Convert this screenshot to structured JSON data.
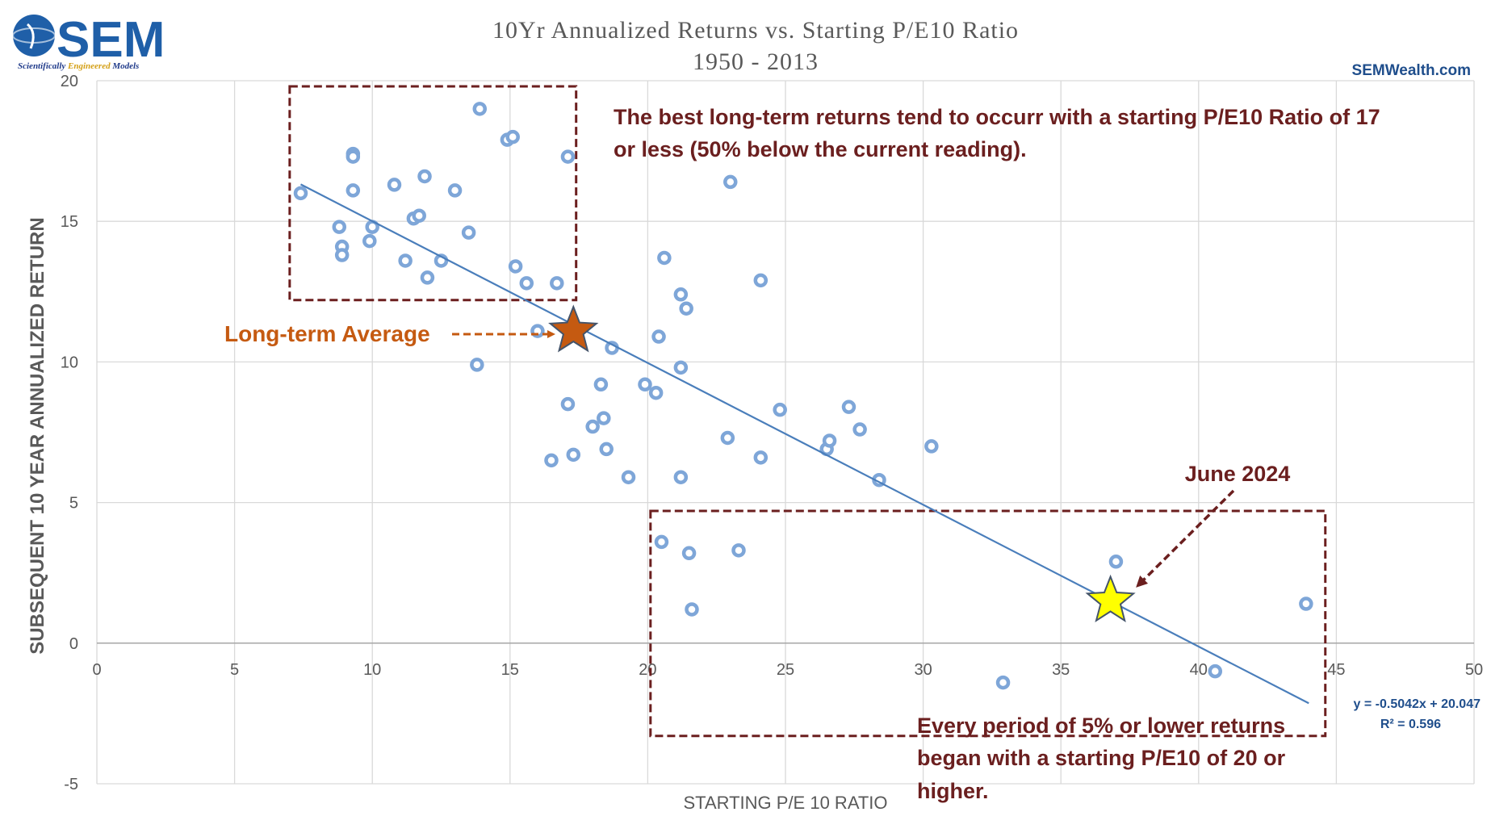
{
  "logo": {
    "name": "SEM",
    "tagline_parts": [
      "Scientifically ",
      "Engineered",
      " Models"
    ]
  },
  "colors": {
    "marker": "#7ea6d8",
    "trendline": "#4a7ebb",
    "gridline": "#d9d9d9",
    "annotation": "#6b1f1f",
    "average": "#c55a11",
    "current_star": "#ffff00"
  },
  "chart_data": {
    "type": "scatter",
    "title": "10Yr Annualized Returns vs. Starting P/E10 Ratio",
    "subtitle": "1950 - 2013",
    "credit": "SEMWealth.com",
    "xlabel": "STARTING P/E 10 RATIO",
    "ylabel": "SUBSEQUENT 10 YEAR ANNUALIZED RETURN",
    "xlim": [
      0,
      50
    ],
    "ylim": [
      -5,
      20
    ],
    "xticks": [
      "0",
      "5",
      "10",
      "15",
      "20",
      "25",
      "30",
      "35",
      "40",
      "45",
      "50"
    ],
    "yticks": [
      "-5",
      "0",
      "5",
      "10",
      "15",
      "20"
    ],
    "grid": true,
    "points": [
      {
        "x": 7.4,
        "y": 16.0
      },
      {
        "x": 8.8,
        "y": 14.8
      },
      {
        "x": 8.9,
        "y": 14.1
      },
      {
        "x": 8.9,
        "y": 13.8
      },
      {
        "x": 9.3,
        "y": 17.4
      },
      {
        "x": 9.3,
        "y": 17.3
      },
      {
        "x": 9.3,
        "y": 16.1
      },
      {
        "x": 9.9,
        "y": 14.3
      },
      {
        "x": 10.0,
        "y": 14.8
      },
      {
        "x": 10.8,
        "y": 16.3
      },
      {
        "x": 11.2,
        "y": 13.6
      },
      {
        "x": 11.5,
        "y": 15.1
      },
      {
        "x": 11.7,
        "y": 15.2
      },
      {
        "x": 11.9,
        "y": 16.6
      },
      {
        "x": 12.0,
        "y": 13.0
      },
      {
        "x": 12.5,
        "y": 13.6
      },
      {
        "x": 13.0,
        "y": 16.1
      },
      {
        "x": 13.5,
        "y": 14.6
      },
      {
        "x": 13.8,
        "y": 9.9
      },
      {
        "x": 13.9,
        "y": 19.0
      },
      {
        "x": 14.9,
        "y": 17.9
      },
      {
        "x": 15.1,
        "y": 18.0
      },
      {
        "x": 15.2,
        "y": 13.4
      },
      {
        "x": 15.6,
        "y": 12.8
      },
      {
        "x": 16.0,
        "y": 11.1
      },
      {
        "x": 16.5,
        "y": 6.5
      },
      {
        "x": 16.7,
        "y": 12.8
      },
      {
        "x": 17.1,
        "y": 17.3
      },
      {
        "x": 17.1,
        "y": 8.5
      },
      {
        "x": 17.3,
        "y": 6.7
      },
      {
        "x": 18.0,
        "y": 7.7
      },
      {
        "x": 18.3,
        "y": 9.2
      },
      {
        "x": 18.4,
        "y": 8.0
      },
      {
        "x": 18.5,
        "y": 6.9
      },
      {
        "x": 18.7,
        "y": 10.5
      },
      {
        "x": 19.3,
        "y": 5.9
      },
      {
        "x": 19.9,
        "y": 9.2
      },
      {
        "x": 20.3,
        "y": 8.9
      },
      {
        "x": 20.4,
        "y": 10.9
      },
      {
        "x": 20.5,
        "y": 3.6
      },
      {
        "x": 20.6,
        "y": 13.7
      },
      {
        "x": 21.2,
        "y": 5.9
      },
      {
        "x": 21.2,
        "y": 9.8
      },
      {
        "x": 21.2,
        "y": 12.4
      },
      {
        "x": 21.4,
        "y": 11.9
      },
      {
        "x": 21.5,
        "y": 3.2
      },
      {
        "x": 21.6,
        "y": 1.2
      },
      {
        "x": 22.9,
        "y": 7.3
      },
      {
        "x": 23.0,
        "y": 16.4
      },
      {
        "x": 23.3,
        "y": 3.3
      },
      {
        "x": 24.1,
        "y": 12.9
      },
      {
        "x": 24.1,
        "y": 6.6
      },
      {
        "x": 24.8,
        "y": 8.3
      },
      {
        "x": 26.5,
        "y": 6.9
      },
      {
        "x": 26.6,
        "y": 7.2
      },
      {
        "x": 27.3,
        "y": 8.4
      },
      {
        "x": 27.7,
        "y": 7.6
      },
      {
        "x": 28.4,
        "y": 5.8
      },
      {
        "x": 30.3,
        "y": 7.0
      },
      {
        "x": 32.9,
        "y": -1.4
      },
      {
        "x": 37.0,
        "y": 2.9
      },
      {
        "x": 40.6,
        "y": -1.0
      },
      {
        "x": 43.9,
        "y": 1.4
      }
    ],
    "trendline": {
      "equation": "y = -0.5042x + 20.047",
      "r_squared": "R² = 0.596",
      "slope": -0.5042,
      "intercept": 20.047,
      "x_range": [
        7.4,
        44.0
      ]
    },
    "average_star": {
      "x": 17.3,
      "y": 11.1,
      "label": "Long-term Average"
    },
    "current_star": {
      "x": 36.8,
      "y": 1.5,
      "label": "June 2024"
    },
    "boxes": [
      {
        "name": "low-pe-box",
        "x0": 7.0,
        "x1": 17.4,
        "y0": 12.2,
        "y1": 19.8
      },
      {
        "name": "high-pe-box",
        "x0": 20.1,
        "x1": 44.6,
        "y0": -3.3,
        "y1": 4.7
      }
    ],
    "annotations": {
      "low_pe": [
        "The best long-term returns tend to occurr with a starting P/E10 Ratio of 17",
        "or less (50% below the current reading)."
      ],
      "high_pe": [
        "Every period of 5% or lower returns",
        "began with a starting P/E10 of 20 or",
        "higher."
      ]
    }
  }
}
